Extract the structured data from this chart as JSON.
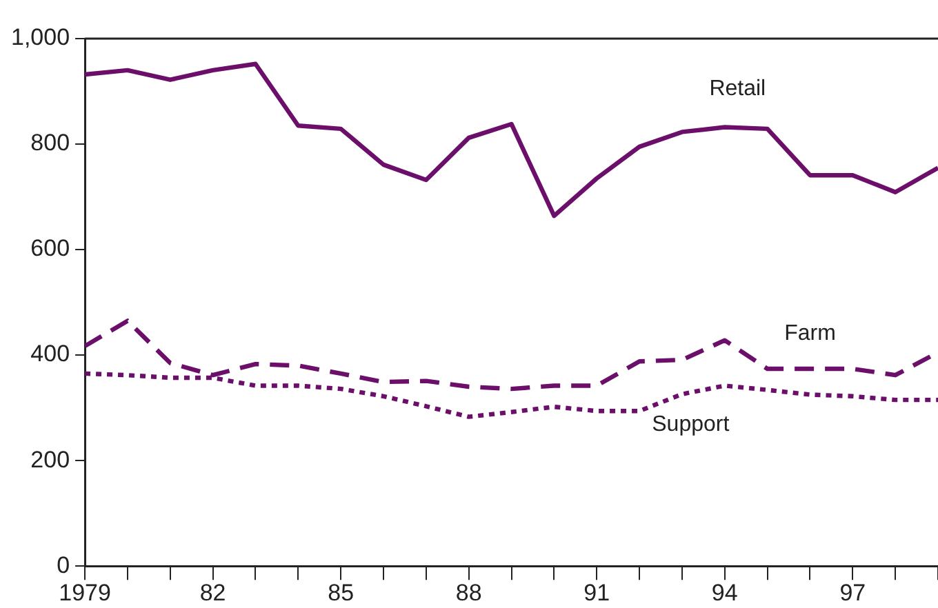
{
  "chart_data": {
    "type": "line",
    "x": [
      1979,
      1980,
      1981,
      1982,
      1983,
      1984,
      1985,
      1986,
      1987,
      1988,
      1989,
      1990,
      1991,
      1992,
      1993,
      1994,
      1995,
      1996,
      1997,
      1998,
      1999
    ],
    "series": [
      {
        "name": "Retail",
        "color": "#6b0f6b",
        "line_style": "solid",
        "values": [
          932,
          940,
          922,
          940,
          952,
          835,
          829,
          761,
          732,
          812,
          838,
          664,
          735,
          795,
          823,
          832,
          829,
          741,
          741,
          709,
          755
        ]
      },
      {
        "name": "Farm",
        "color": "#6b0f6b",
        "line_style": "dashed",
        "values": [
          417,
          465,
          385,
          362,
          383,
          380,
          365,
          349,
          351,
          340,
          336,
          342,
          342,
          388,
          391,
          428,
          374,
          374,
          374,
          362,
          405
        ]
      },
      {
        "name": "Support",
        "color": "#6b0f6b",
        "line_style": "dotted",
        "values": [
          365,
          362,
          357,
          357,
          342,
          342,
          336,
          322,
          303,
          283,
          292,
          302,
          294,
          294,
          326,
          342,
          334,
          325,
          322,
          315,
          315
        ]
      }
    ],
    "xlim": [
      1979,
      1999
    ],
    "xticks": [
      {
        "value": 1979,
        "label": "1979"
      },
      {
        "value": 1980,
        "label": null
      },
      {
        "value": 1981,
        "label": null
      },
      {
        "value": 1982,
        "label": "82"
      },
      {
        "value": 1983,
        "label": null
      },
      {
        "value": 1984,
        "label": null
      },
      {
        "value": 1985,
        "label": "85"
      },
      {
        "value": 1986,
        "label": null
      },
      {
        "value": 1987,
        "label": null
      },
      {
        "value": 1988,
        "label": "88"
      },
      {
        "value": 1989,
        "label": null
      },
      {
        "value": 1990,
        "label": null
      },
      {
        "value": 1991,
        "label": "91"
      },
      {
        "value": 1992,
        "label": null
      },
      {
        "value": 1993,
        "label": null
      },
      {
        "value": 1994,
        "label": "94"
      },
      {
        "value": 1995,
        "label": null
      },
      {
        "value": 1996,
        "label": null
      },
      {
        "value": 1997,
        "label": "97"
      },
      {
        "value": 1998,
        "label": null
      },
      {
        "value": 1999,
        "label": null
      }
    ],
    "ylim": [
      0,
      1000
    ],
    "yticks": [
      0,
      200,
      400,
      600,
      800,
      {
        "value": 1000,
        "label": "1,000"
      }
    ],
    "grid": false,
    "legend": false,
    "marker": "none"
  }
}
